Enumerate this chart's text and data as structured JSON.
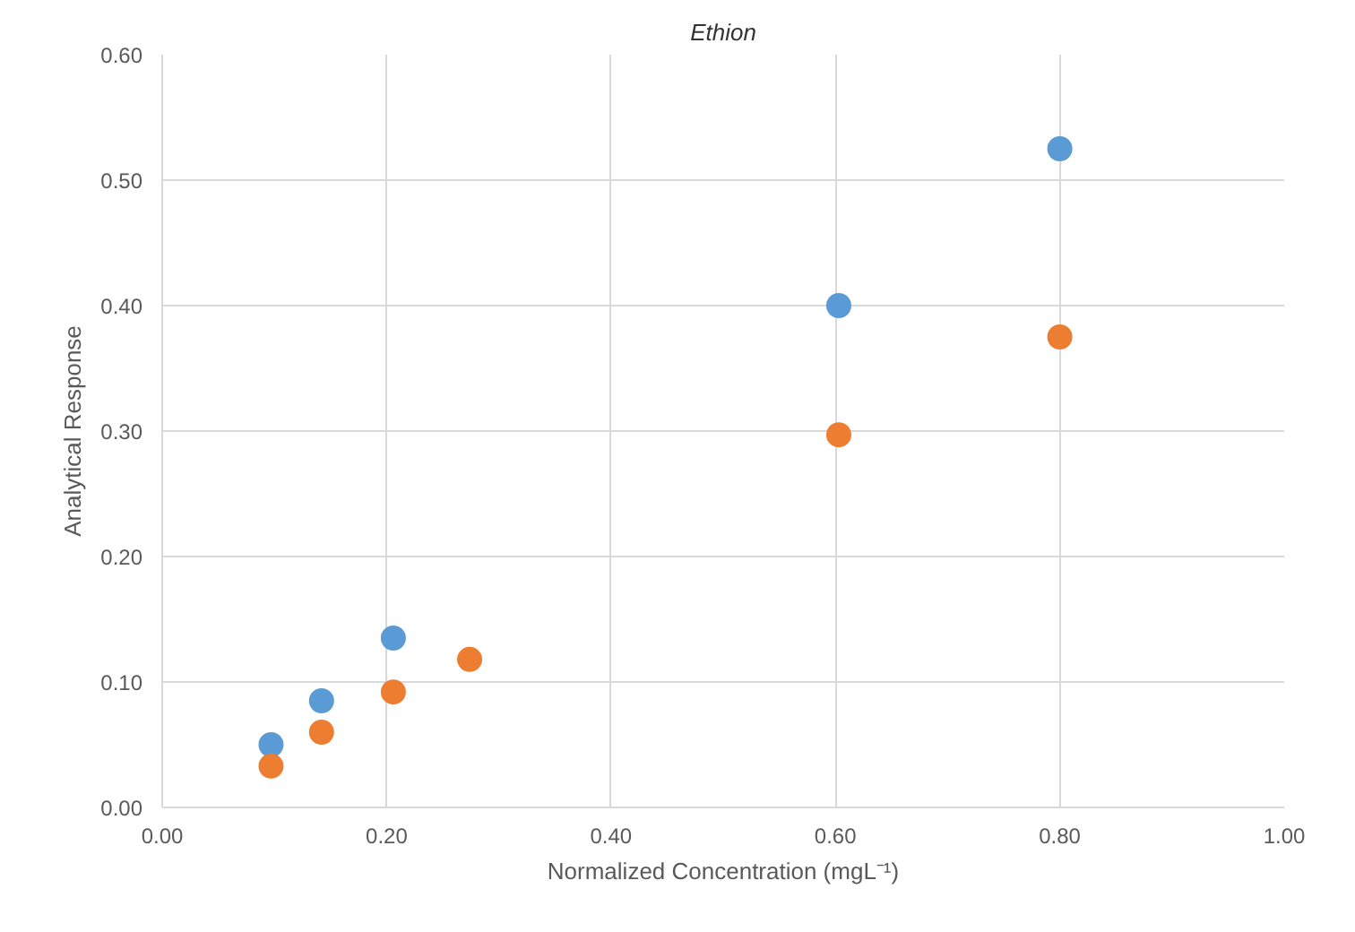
{
  "chart_data": {
    "type": "scatter",
    "title": "Ethion",
    "xlabel": "Normalized Concentration (mgL⁻¹)",
    "ylabel": "Analytical Response",
    "xlim": [
      0,
      1
    ],
    "ylim": [
      0,
      0.6
    ],
    "xticks": [
      {
        "value": 0,
        "label": "0.00"
      },
      {
        "value": 0.2,
        "label": "0.20"
      },
      {
        "value": 0.4,
        "label": "0.40"
      },
      {
        "value": 0.6,
        "label": "0.60"
      },
      {
        "value": 0.8,
        "label": "0.80"
      },
      {
        "value": 1,
        "label": "1.00"
      }
    ],
    "yticks": [
      {
        "value": 0,
        "label": "0.00"
      },
      {
        "value": 0.1,
        "label": "0.10"
      },
      {
        "value": 0.2,
        "label": "0.20"
      },
      {
        "value": 0.3,
        "label": "0.30"
      },
      {
        "value": 0.4,
        "label": "0.40"
      },
      {
        "value": 0.5,
        "label": "0.50"
      },
      {
        "value": 0.6,
        "label": "0.60"
      }
    ],
    "grid": true,
    "marker": "circle",
    "series": [
      {
        "color": "#5b9bd5",
        "x": [
          0.097,
          0.142,
          0.206,
          0.603,
          0.8
        ],
        "values": [
          0.05,
          0.085,
          0.135,
          0.4,
          0.525
        ]
      },
      {
        "color": "#ed7d31",
        "x": [
          0.097,
          0.142,
          0.206,
          0.274,
          0.603,
          0.8
        ],
        "values": [
          0.033,
          0.06,
          0.092,
          0.118,
          0.297,
          0.375
        ]
      }
    ]
  }
}
